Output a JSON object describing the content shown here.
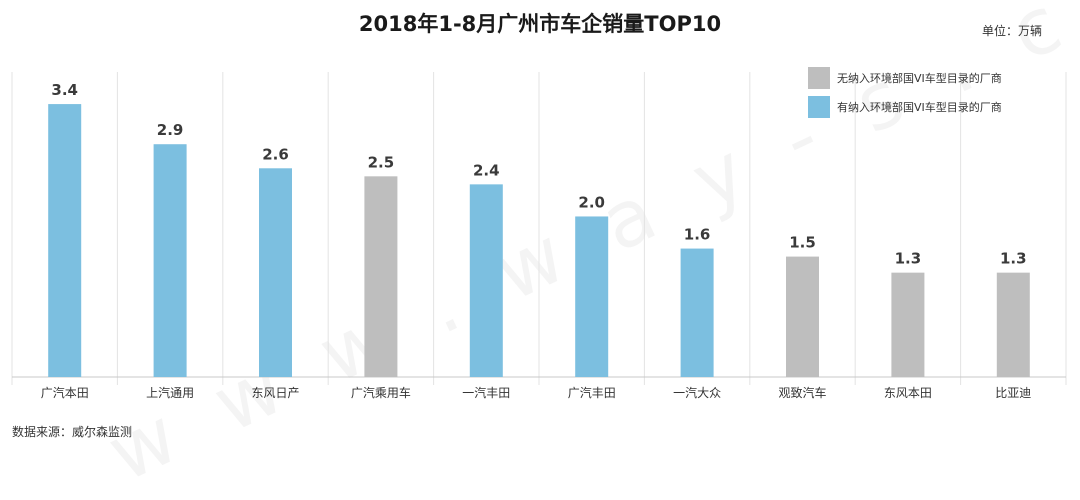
{
  "chart_data": {
    "type": "bar",
    "title": "2018年1-8月广州市车企销量TOP10",
    "unit": "单位：万辆",
    "source": "数据来源：威尔森监测",
    "watermark": "w w w . w a y - s . c n",
    "categories": [
      "广汽本田",
      "上汽通用",
      "东风日产",
      "广汽乘用车",
      "一汽丰田",
      "广汽丰田",
      "一汽大众",
      "观致汽车",
      "东风本田",
      "比亚迪"
    ],
    "values": [
      3.4,
      2.9,
      2.6,
      2.5,
      2.4,
      2.0,
      1.6,
      1.5,
      1.3,
      1.3
    ],
    "value_labels": [
      "3.4",
      "2.9",
      "2.6",
      "2.5",
      "2.4",
      "2.0",
      "1.6",
      "1.5",
      "1.3",
      "1.3"
    ],
    "groups": [
      1,
      1,
      1,
      0,
      1,
      1,
      1,
      0,
      0,
      0
    ],
    "ylim": [
      0,
      4.0
    ],
    "grid": false,
    "legend_position": "top-right",
    "legend": [
      {
        "name": "无纳入环境部国VI车型目录的厂商",
        "color": "#bebebe"
      },
      {
        "name": "有纳入环境部国VI车型目录的厂商",
        "color": "#7cbfe0"
      }
    ]
  }
}
